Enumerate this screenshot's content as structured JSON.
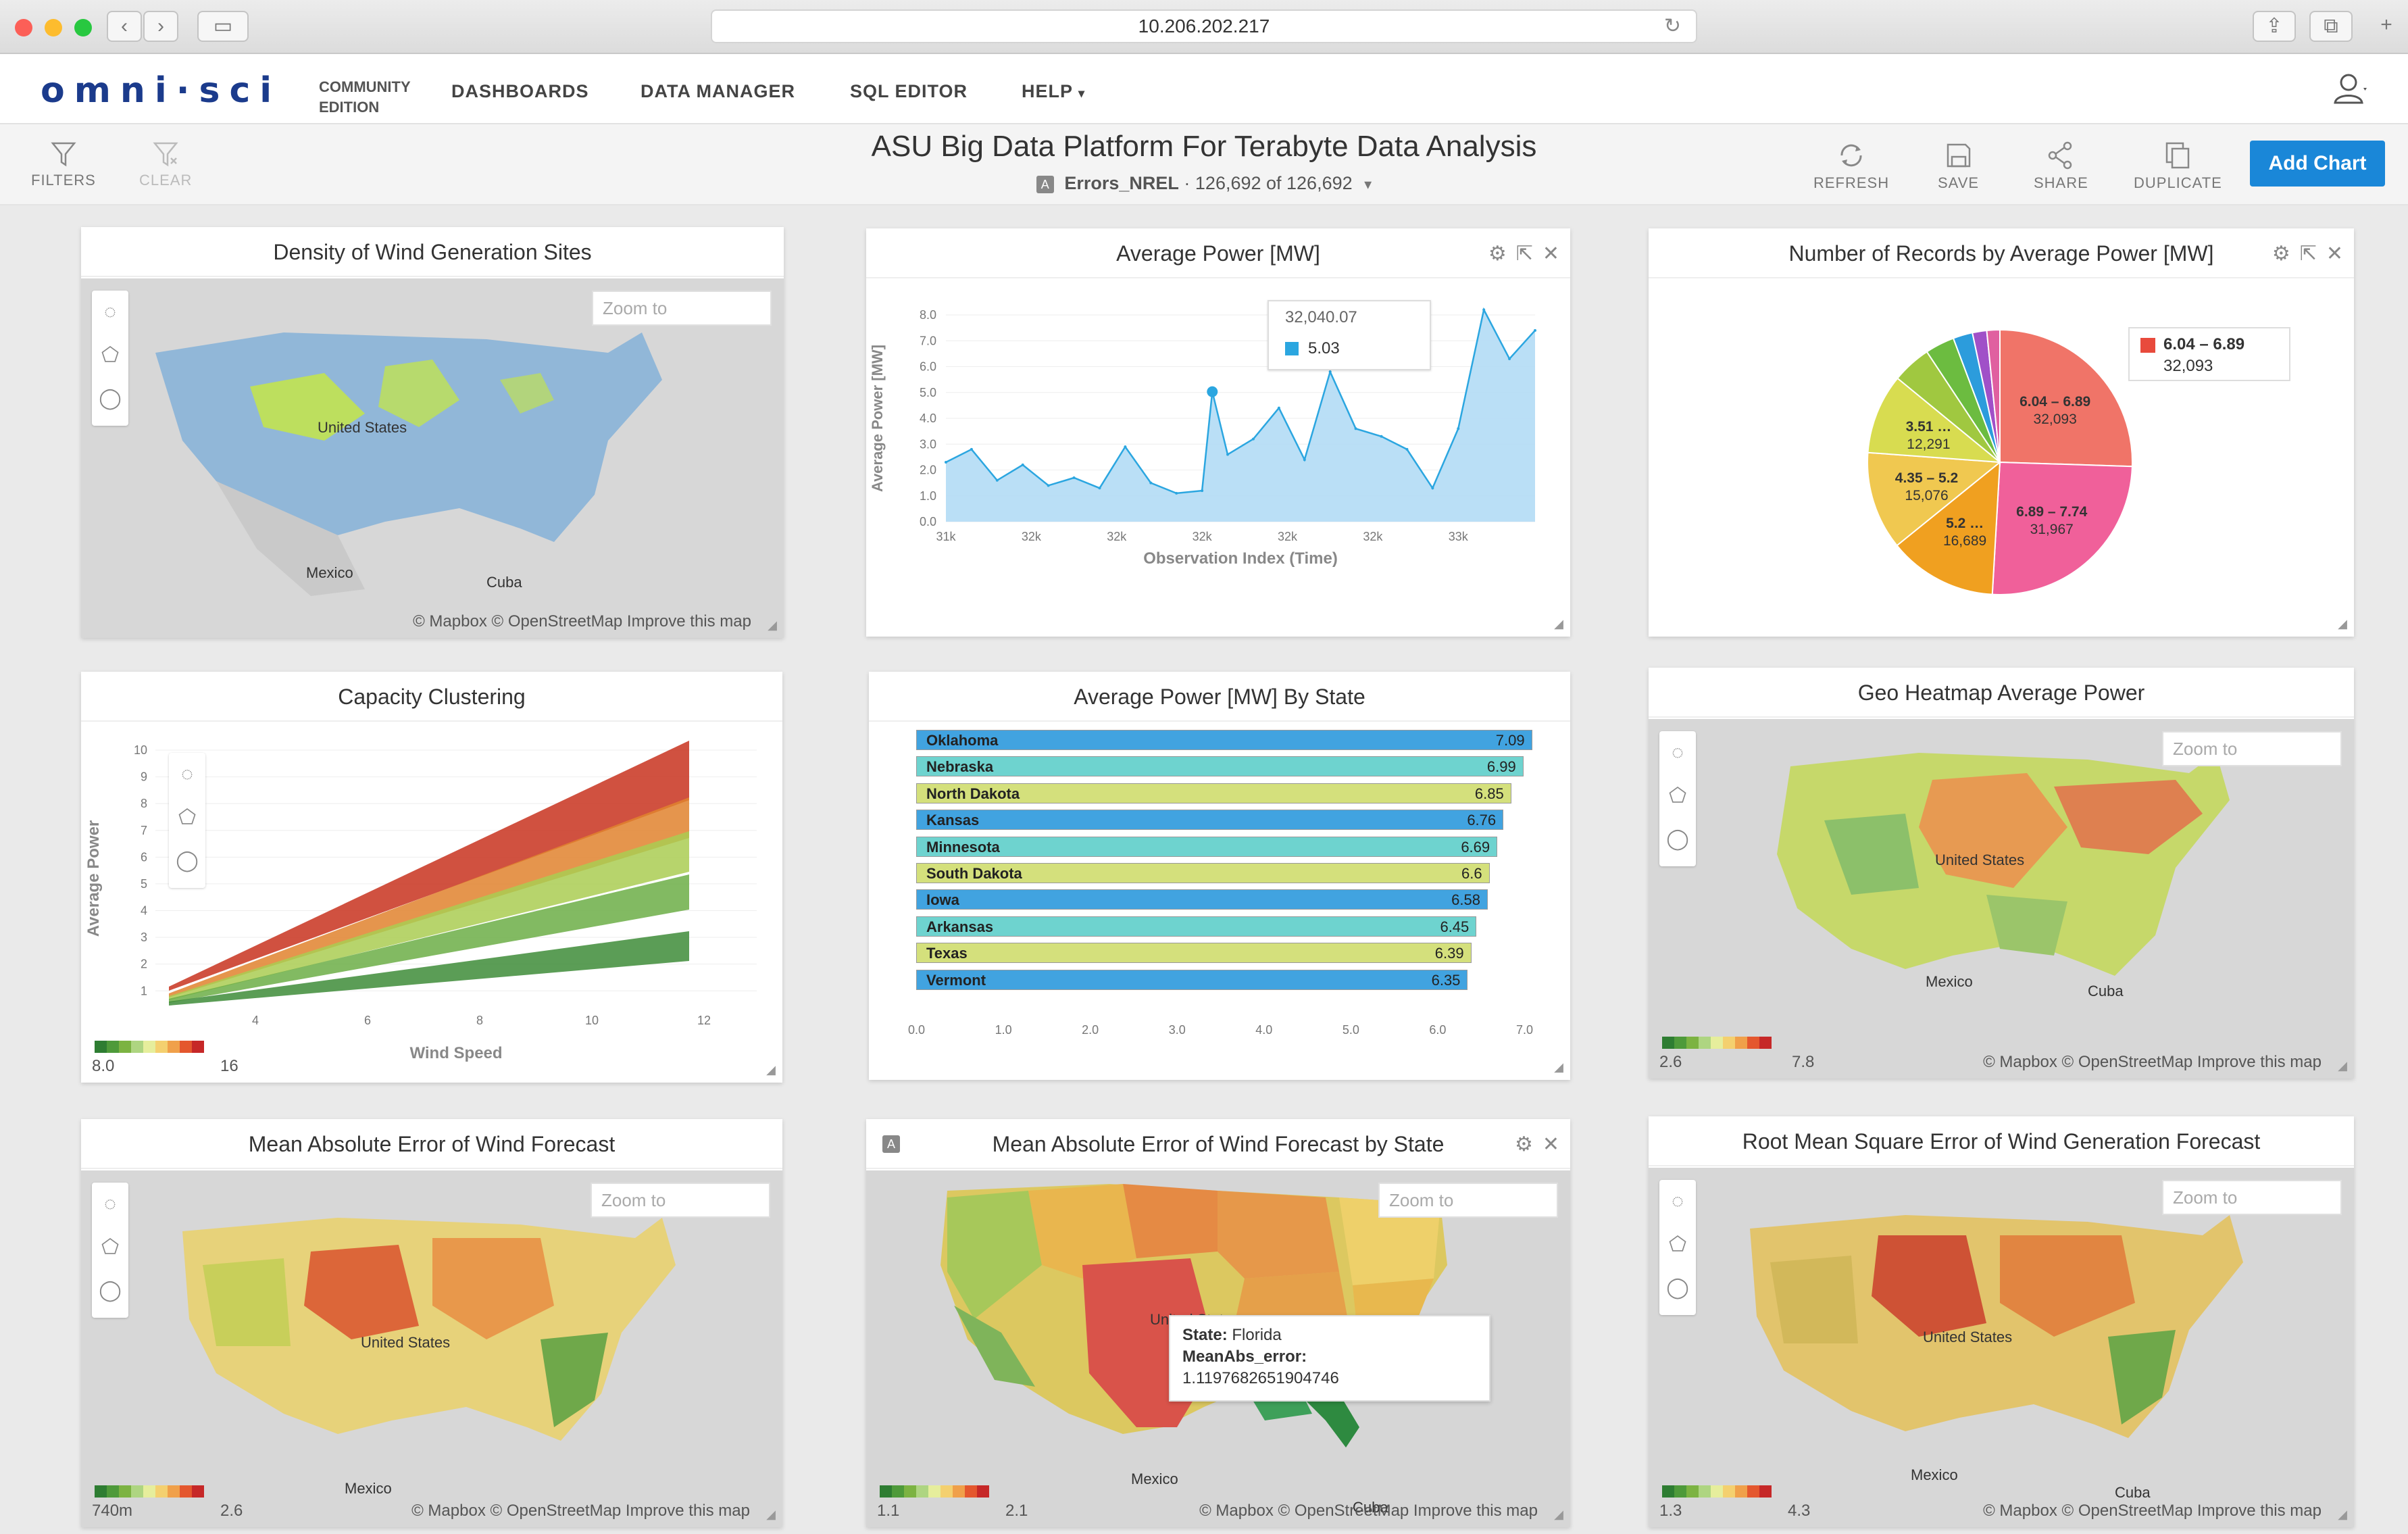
{
  "browser": {
    "url": "10.206.202.217"
  },
  "app": {
    "logo": "omni·sci",
    "edition": "COMMUNITY EDITION",
    "nav": [
      "DASHBOARDS",
      "DATA MANAGER",
      "SQL EDITOR",
      "HELP"
    ]
  },
  "toolbar": {
    "filters": "FILTERS",
    "clear": "CLEAR",
    "title": "ASU Big Data Platform For Terabyte Data Analysis",
    "table": "Errors_NREL",
    "records": "126,692 of 126,692",
    "refresh": "REFRESH",
    "save": "SAVE",
    "share": "SHARE",
    "duplicate": "DUPLICATE",
    "add_chart": "Add Chart"
  },
  "maps": {
    "zoom_placeholder": "Zoom to",
    "attribution": "© Mapbox  © OpenStreetMap  Improve this map",
    "label_us": "United States",
    "label_mexico": "Mexico",
    "label_cuba": "Cuba"
  },
  "panels": {
    "density": {
      "title": "Density of Wind Generation Sites"
    },
    "avg_power": {
      "title": "Average Power [MW]",
      "tooltip_x": "32,040.07",
      "tooltip_val": "5.03",
      "ylabel": "Average Power [MW]",
      "xlabel": "Observation Index (Time)",
      "yticks": [
        "8.0",
        "7.0",
        "6.0",
        "5.0",
        "4.0",
        "3.0",
        "2.0",
        "1.0",
        "0.0"
      ],
      "xticks": [
        "31k",
        "32k",
        "32k",
        "32k",
        "32k",
        "32k",
        "33k"
      ]
    },
    "records_pie": {
      "title": "Number of Records by Average Power [MW]",
      "legend_label": "6.04 – 6.89",
      "legend_value": "32,093"
    },
    "capacity": {
      "title": "Capacity Clustering",
      "ylabel": "Average Power",
      "xlabel": "Wind Speed",
      "legend_min": "8.0",
      "legend_max": "16"
    },
    "by_state": {
      "title": "Average Power [MW] By State"
    },
    "geo_heat": {
      "title": "Geo Heatmap Average Power",
      "legend_min": "2.6",
      "legend_max": "7.8"
    },
    "mae": {
      "title": "Mean Absolute Error of Wind Forecast",
      "legend_min": "740m",
      "legend_max": "2.6"
    },
    "mae_state": {
      "title": "Mean Absolute Error of Wind Forecast by State",
      "legend_min": "1.1",
      "legend_max": "2.1",
      "tip_state_label": "State:",
      "tip_state": "Florida",
      "tip_metric_label": "MeanAbs_error:",
      "tip_metric": "1.1197682651904746"
    },
    "rmse": {
      "title": "Root Mean Square Error of Wind Generation Forecast",
      "legend_min": "1.3",
      "legend_max": "4.3"
    }
  },
  "chart_data": [
    {
      "type": "area",
      "title": "Average Power [MW]",
      "xlabel": "Observation Index (Time)",
      "ylabel": "Average Power [MW]",
      "ylim": [
        0,
        8
      ],
      "x": [
        31000,
        31100,
        31200,
        31300,
        31400,
        31500,
        31600,
        31700,
        31800,
        31900,
        32000,
        32040,
        32100,
        32200,
        32300,
        32400,
        32500,
        32600,
        32700,
        32800,
        32900,
        33000,
        33100,
        33200,
        33300
      ],
      "values": [
        2.3,
        2.8,
        1.6,
        2.2,
        1.4,
        1.7,
        1.3,
        2.9,
        1.5,
        1.1,
        1.2,
        5.03,
        2.6,
        3.2,
        4.4,
        2.4,
        5.8,
        3.6,
        3.3,
        2.8,
        1.3,
        3.6,
        8.2,
        6.3,
        7.4
      ],
      "grid": true
    },
    {
      "type": "pie",
      "title": "Number of Records by Average Power [MW]",
      "categories": [
        "6.04 – 6.89",
        "6.89 – 7.74",
        "5.2 …",
        "4.35 – 5.2",
        "3.51 …",
        "…",
        "…",
        "…",
        "…",
        "…"
      ],
      "values": [
        32093,
        31967,
        16689,
        15076,
        12291,
        6000,
        4500,
        3000,
        2200,
        2000
      ],
      "colors": [
        "#f07468",
        "#f0609a",
        "#f0a020",
        "#f0c850",
        "#d8dc50",
        "#a0c840",
        "#6cbc40",
        "#2c9cdc",
        "#a050c8",
        "#e060a0"
      ]
    },
    {
      "type": "bar",
      "orientation": "horizontal",
      "title": "Average Power [MW] By State",
      "categories": [
        "Oklahoma",
        "Nebraska",
        "North Dakota",
        "Kansas",
        "Minnesota",
        "South Dakota",
        "Iowa",
        "Arkansas",
        "Texas",
        "Vermont"
      ],
      "values": [
        7.09,
        6.99,
        6.85,
        6.76,
        6.69,
        6.6,
        6.58,
        6.45,
        6.39,
        6.35
      ],
      "colors": [
        "#41a3e0",
        "#6ed3cf",
        "#d4e07c",
        "#41a3e0",
        "#6ed3cf",
        "#d4e07c",
        "#41a3e0",
        "#6ed3cf",
        "#d4e07c",
        "#41a3e0"
      ],
      "xticks": [
        "0.0",
        "1.0",
        "2.0",
        "3.0",
        "4.0",
        "5.0",
        "6.0",
        "7.0"
      ],
      "xlim": [
        0,
        7
      ]
    },
    {
      "type": "scatter",
      "title": "Capacity Clustering",
      "xlabel": "Wind Speed",
      "ylabel": "Average Power",
      "xticks": [
        "4",
        "6",
        "8",
        "10",
        "12"
      ],
      "yticks": [
        "10",
        "9",
        "8",
        "7",
        "6",
        "5",
        "4",
        "3",
        "2",
        "1"
      ]
    }
  ]
}
